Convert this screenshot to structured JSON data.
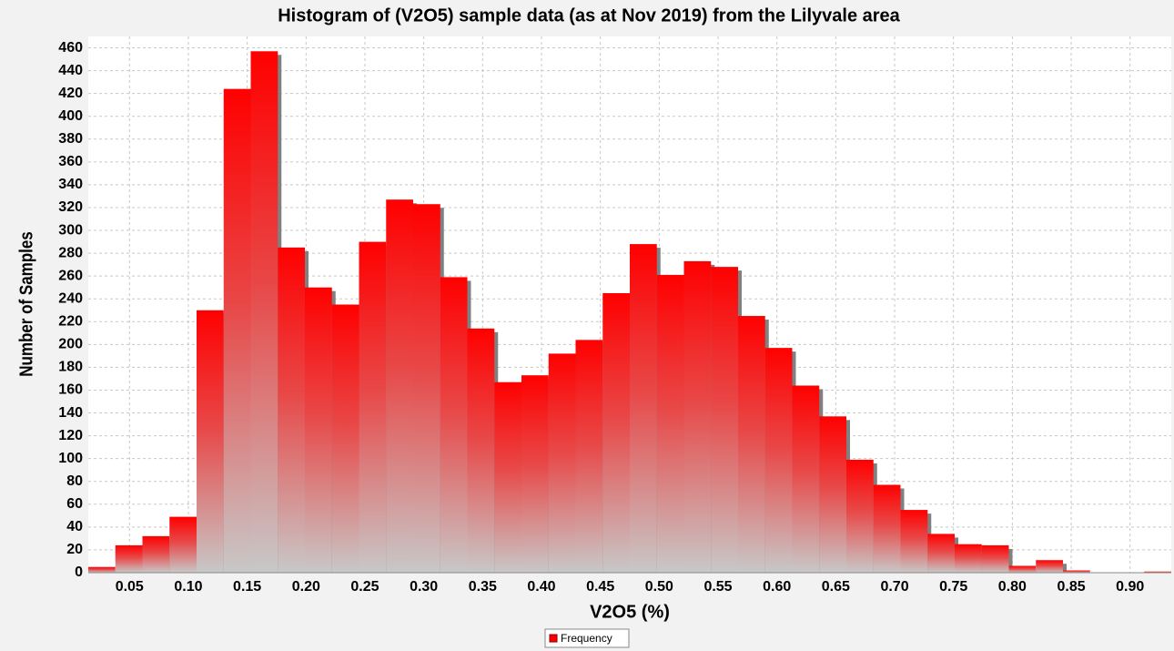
{
  "chart_data": {
    "type": "histogram",
    "title": "Histogram of  (V2O5) sample data (as at Nov 2019) from the Lilyvale area",
    "x_label": "V2O5  (%)",
    "y_label": "Number of Samples",
    "bins": [
      0.015,
      0.038,
      0.061,
      0.084,
      0.107,
      0.13,
      0.153,
      0.176,
      0.199,
      0.222,
      0.245,
      0.268,
      0.291,
      0.314,
      0.337,
      0.36,
      0.383,
      0.406,
      0.429,
      0.452,
      0.475,
      0.498,
      0.521,
      0.544,
      0.567,
      0.59,
      0.613,
      0.636,
      0.659,
      0.682,
      0.705,
      0.728,
      0.751,
      0.774,
      0.797,
      0.82,
      0.843,
      0.866,
      0.889,
      0.912,
      0.935
    ],
    "series": [
      {
        "name": "Frequency",
        "color": "#ff0000",
        "values": [
          5,
          24,
          32,
          49,
          230,
          424,
          457,
          285,
          250,
          235,
          290,
          327,
          323,
          259,
          214,
          167,
          173,
          192,
          204,
          245,
          288,
          261,
          273,
          268,
          225,
          197,
          164,
          137,
          99,
          77,
          55,
          34,
          25,
          24,
          6,
          11,
          2,
          0,
          0,
          1
        ]
      }
    ],
    "xlim": [
      0.015,
      0.935
    ],
    "xticks": [
      0.05,
      {
        "value": 0.1,
        "label": "0.10"
      },
      0.15,
      {
        "value": 0.2,
        "label": "0.20"
      },
      0.25,
      {
        "value": 0.3,
        "label": "0.30"
      },
      0.35,
      {
        "value": 0.4,
        "label": "0.40"
      },
      0.45,
      {
        "value": 0.5,
        "label": "0.50"
      },
      0.55,
      {
        "value": 0.6,
        "label": "0.60"
      },
      0.65,
      {
        "value": 0.7,
        "label": "0.70"
      },
      0.75,
      {
        "value": 0.8,
        "label": "0.80"
      },
      0.85,
      {
        "value": 0.9,
        "label": "0.90"
      }
    ],
    "ylim": [
      0,
      470
    ],
    "yticks": [
      0,
      20,
      40,
      60,
      80,
      100,
      120,
      140,
      160,
      180,
      200,
      220,
      240,
      260,
      280,
      300,
      320,
      340,
      360,
      380,
      400,
      420,
      440,
      460
    ],
    "grid": true,
    "legend": "bottom"
  }
}
